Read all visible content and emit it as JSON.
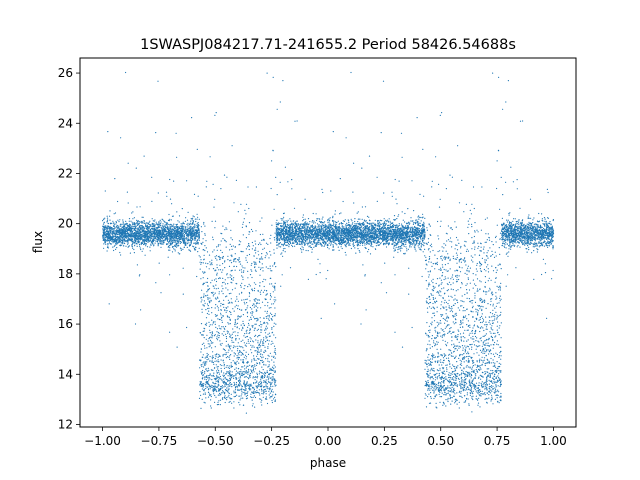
{
  "chart_data": {
    "type": "scatter",
    "title": "1SWASPJ084217.71-241655.2 Period 58426.54688s",
    "xlabel": "phase",
    "ylabel": "flux",
    "xlim": [
      -1.1,
      1.1
    ],
    "ylim": [
      11.9,
      26.6
    ],
    "x_ticks": [
      -1.0,
      -0.75,
      -0.5,
      -0.25,
      0.0,
      0.25,
      0.5,
      0.75,
      1.0
    ],
    "x_tick_labels": [
      "−1.00",
      "−0.75",
      "−0.50",
      "−0.25",
      "0.00",
      "0.25",
      "0.50",
      "0.75",
      "1.00"
    ],
    "y_ticks": [
      12,
      14,
      16,
      18,
      20,
      22,
      24,
      26
    ],
    "y_tick_labels": [
      "12",
      "14",
      "16",
      "18",
      "20",
      "22",
      "24",
      "26"
    ],
    "grid": false,
    "legend": "none",
    "marker_color": "#1f77b4",
    "series": [
      {
        "description_points": "phase-folded light curve, flux vs phase; points repeat with period 1 in phase",
        "baseline_flux": 19.6,
        "eclipse_center_phase": -0.4,
        "eclipse_half_width": 0.17,
        "eclipse_min_flux": 13.3,
        "sample_points": [
          [
            -0.98,
            19.6
          ],
          [
            -0.9,
            19.5
          ],
          [
            -0.8,
            19.7
          ],
          [
            -0.7,
            19.6
          ],
          [
            -0.6,
            19.5
          ],
          [
            -0.55,
            17.2
          ],
          [
            -0.5,
            15.1
          ],
          [
            -0.45,
            13.8
          ],
          [
            -0.4,
            13.4
          ],
          [
            -0.35,
            13.6
          ],
          [
            -0.3,
            14.8
          ],
          [
            -0.25,
            17.6
          ],
          [
            -0.2,
            19.6
          ],
          [
            -0.1,
            19.5
          ],
          [
            0.0,
            19.6
          ],
          [
            0.1,
            19.5
          ],
          [
            0.2,
            19.6
          ],
          [
            0.3,
            19.7
          ],
          [
            0.4,
            19.5
          ],
          [
            0.45,
            17.1
          ],
          [
            0.5,
            15.0
          ],
          [
            0.55,
            13.8
          ],
          [
            0.6,
            13.4
          ],
          [
            0.65,
            13.6
          ],
          [
            0.7,
            14.9
          ],
          [
            0.75,
            17.5
          ],
          [
            0.8,
            19.6
          ],
          [
            0.9,
            19.5
          ],
          [
            1.0,
            19.6
          ],
          [
            -0.27,
            26.0
          ],
          [
            0.73,
            26.0
          ],
          [
            -0.2,
            25.7
          ],
          [
            0.8,
            25.7
          ],
          [
            -0.25,
            22.5
          ],
          [
            0.75,
            22.5
          ]
        ]
      }
    ]
  }
}
